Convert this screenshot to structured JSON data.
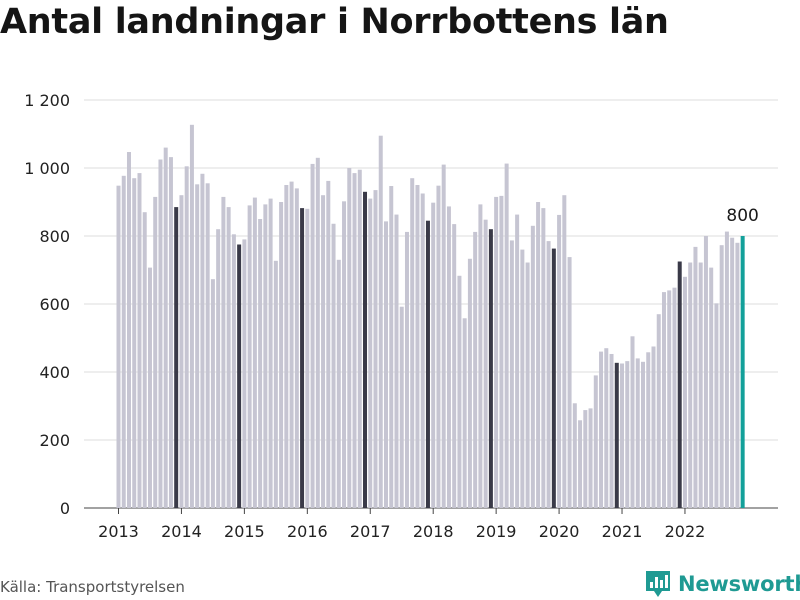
{
  "header": {
    "title": "Antal landningar i Norrbottens län"
  },
  "footer": {
    "source": "Källa: Transportstyrelsen",
    "brand": "Newsworthy"
  },
  "icons": {
    "brand_logo": "newsworthy-bar-chart-icon"
  },
  "colors": {
    "bar_default": "#c6c5d2",
    "bar_december": "#3a3a48",
    "bar_latest": "#13a09a",
    "gridline": "#dedede",
    "brand": "#1f9a93"
  },
  "chart_data": {
    "type": "bar",
    "title": "Antal landningar i Norrbottens län",
    "xlabel": "",
    "ylabel": "",
    "ylim": [
      0,
      1200
    ],
    "yticks": [
      {
        "value": 0,
        "label": "0"
      },
      {
        "value": 200,
        "label": "200"
      },
      {
        "value": 400,
        "label": "400"
      },
      {
        "value": 600,
        "label": "600"
      },
      {
        "value": 800,
        "label": "800"
      },
      {
        "value": 1000,
        "label": "1 000"
      },
      {
        "value": 1200,
        "label": "1 200"
      }
    ],
    "x_start": "2013-01",
    "x_ticks": [
      "2013",
      "2014",
      "2015",
      "2016",
      "2017",
      "2018",
      "2019",
      "2020",
      "2021",
      "2022"
    ],
    "grid": true,
    "highlight": "december bars darker; latest month highlighted",
    "annotations": [
      {
        "text": "800",
        "month": "2022-12"
      }
    ],
    "values": [
      948,
      977,
      1047,
      970,
      985,
      870,
      707,
      915,
      1025,
      1060,
      1032,
      885,
      920,
      1005,
      1127,
      952,
      983,
      955,
      673,
      820,
      915,
      885,
      805,
      775,
      790,
      890,
      913,
      850,
      893,
      910,
      727,
      900,
      950,
      960,
      940,
      882,
      880,
      1012,
      1030,
      920,
      962,
      836,
      730,
      902,
      1000,
      985,
      995,
      930,
      910,
      935,
      1095,
      843,
      947,
      863,
      592,
      812,
      970,
      950,
      925,
      845,
      898,
      948,
      1010,
      887,
      835,
      683,
      558,
      733,
      812,
      893,
      848,
      820,
      915,
      918,
      1013,
      787,
      863,
      760,
      722,
      830,
      900,
      882,
      785,
      763,
      862,
      920,
      738,
      308,
      258,
      288,
      293,
      390,
      460,
      470,
      453,
      427,
      425,
      432,
      505,
      440,
      430,
      458,
      475,
      570,
      635,
      640,
      648,
      725,
      680,
      722,
      768,
      722,
      800,
      707,
      602,
      773,
      813,
      795,
      780,
      800
    ]
  }
}
